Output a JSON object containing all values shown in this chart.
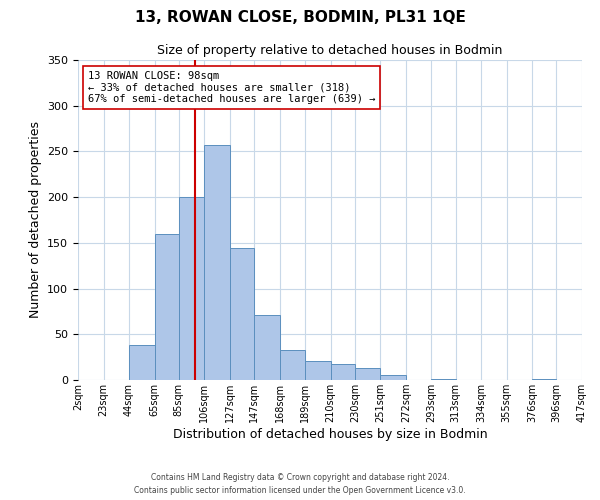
{
  "title": "13, ROWAN CLOSE, BODMIN, PL31 1QE",
  "subtitle": "Size of property relative to detached houses in Bodmin",
  "xlabel": "Distribution of detached houses by size in Bodmin",
  "ylabel": "Number of detached properties",
  "bin_edges": [
    2,
    23,
    44,
    65,
    85,
    106,
    127,
    147,
    168,
    189,
    210,
    230,
    251,
    272,
    293,
    313,
    334,
    355,
    376,
    396,
    417
  ],
  "bin_counts": [
    0,
    0,
    38,
    160,
    200,
    257,
    144,
    71,
    33,
    21,
    17,
    13,
    5,
    0,
    1,
    0,
    0,
    0,
    1,
    0
  ],
  "bar_color": "#aec6e8",
  "bar_edgecolor": "#5b8fbe",
  "property_size": 98,
  "vline_color": "#cc0000",
  "annotation_line1": "13 ROWAN CLOSE: 98sqm",
  "annotation_line2": "← 33% of detached houses are smaller (318)",
  "annotation_line3": "67% of semi-detached houses are larger (639) →",
  "annotation_box_color": "#ffffff",
  "annotation_box_edgecolor": "#cc0000",
  "ylim": [
    0,
    350
  ],
  "yticks": [
    0,
    50,
    100,
    150,
    200,
    250,
    300,
    350
  ],
  "footer1": "Contains HM Land Registry data © Crown copyright and database right 2024.",
  "footer2": "Contains public sector information licensed under the Open Government Licence v3.0.",
  "background_color": "#ffffff",
  "grid_color": "#c8d8e8",
  "title_fontsize": 11,
  "subtitle_fontsize": 9
}
